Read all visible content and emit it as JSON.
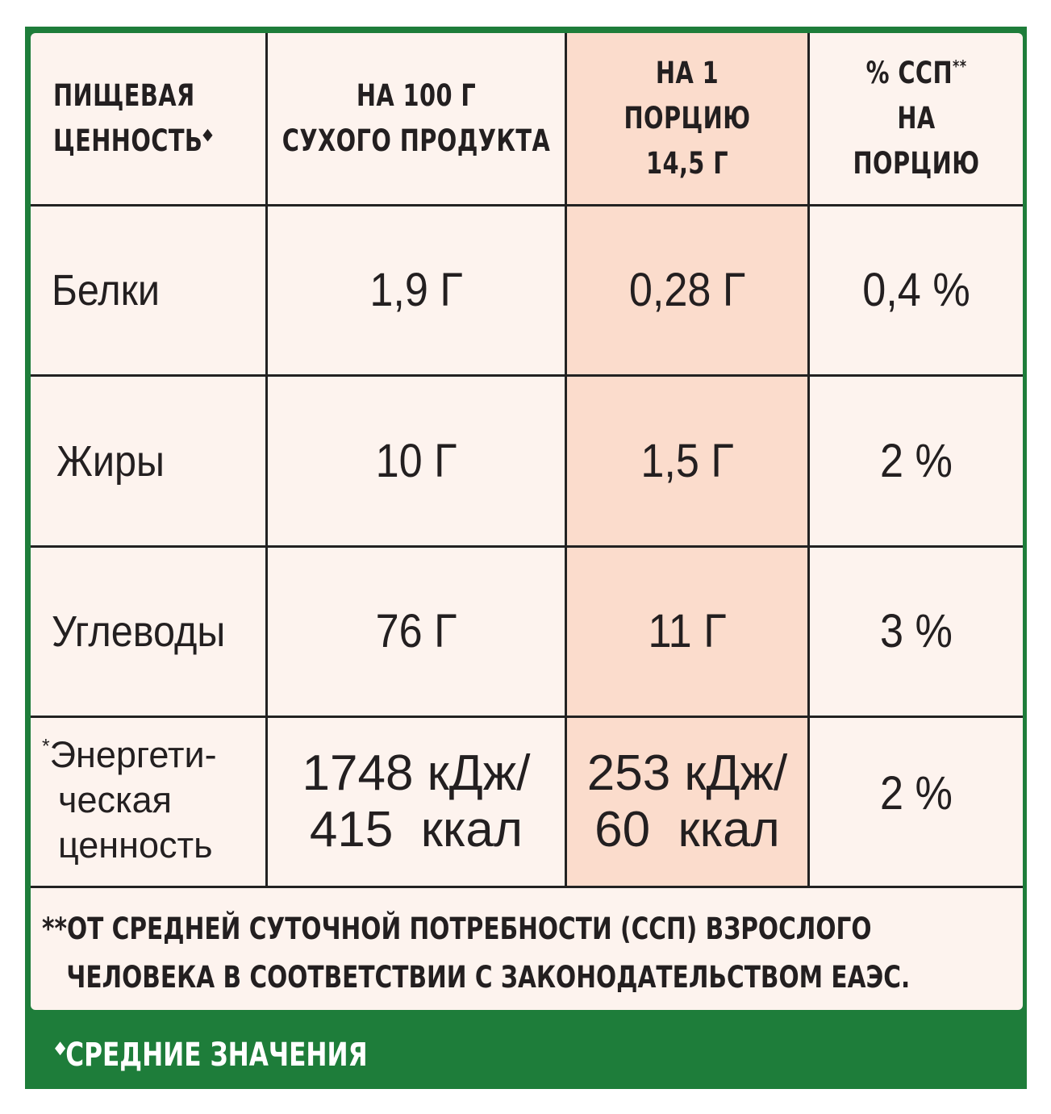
{
  "header": {
    "col1_line1": "ПИЩЕВАЯ",
    "col1_line2": "ЦЕННОСТЬ",
    "col1_mark": "◆",
    "col2_line1": "НА 100 Г",
    "col2_line2": "СУХОГО ПРОДУКТА",
    "col3_line1": "НА 1 ПОРЦИЮ",
    "col3_line2": "14,5 Г",
    "col4_line1": "% ССП",
    "col4_mark": "**",
    "col4_line2": "НА ПОРЦИЮ"
  },
  "rows": [
    {
      "label": "Белки",
      "per100": "1,9 Г",
      "perPortion": "0,28 Г",
      "percent": "0,4 %"
    },
    {
      "label": "Жиры",
      "per100": "10 Г",
      "perPortion": "1,5 Г",
      "percent": "2 %"
    },
    {
      "label": "Углеводы",
      "per100": "76 Г",
      "perPortion": "11 Г",
      "percent": "3 %"
    }
  ],
  "energy": {
    "mark": "*",
    "label_line1": "Энергети-",
    "label_line2": "ческая",
    "label_line3": "ценность",
    "per100_line1": "1748 кДж/",
    "per100_line2": "415  ккал",
    "perPortion_line1": "253 кДж/",
    "perPortion_line2": "60  ккал",
    "percent": "2 %"
  },
  "footnote": {
    "mark": "**",
    "line1": "ОТ СРЕДНЕЙ СУТОЧНОЙ ПОТРЕБНОСТИ (ССП) ВЗРОСЛОГО",
    "line2": "ЧЕЛОВЕКА В СООТВЕТСТВИИ С ЗАКОНОДАТЕЛЬСТВОМ ЕАЭС."
  },
  "bottom_note": {
    "mark": "◆",
    "text": "СРЕДНИЕ ЗНАЧЕНИЯ"
  },
  "colors": {
    "frame_green": "#1e7d3a",
    "panel_bg": "#fdf3ee",
    "highlight_column": "#fbdccc",
    "text": "#231f20"
  }
}
